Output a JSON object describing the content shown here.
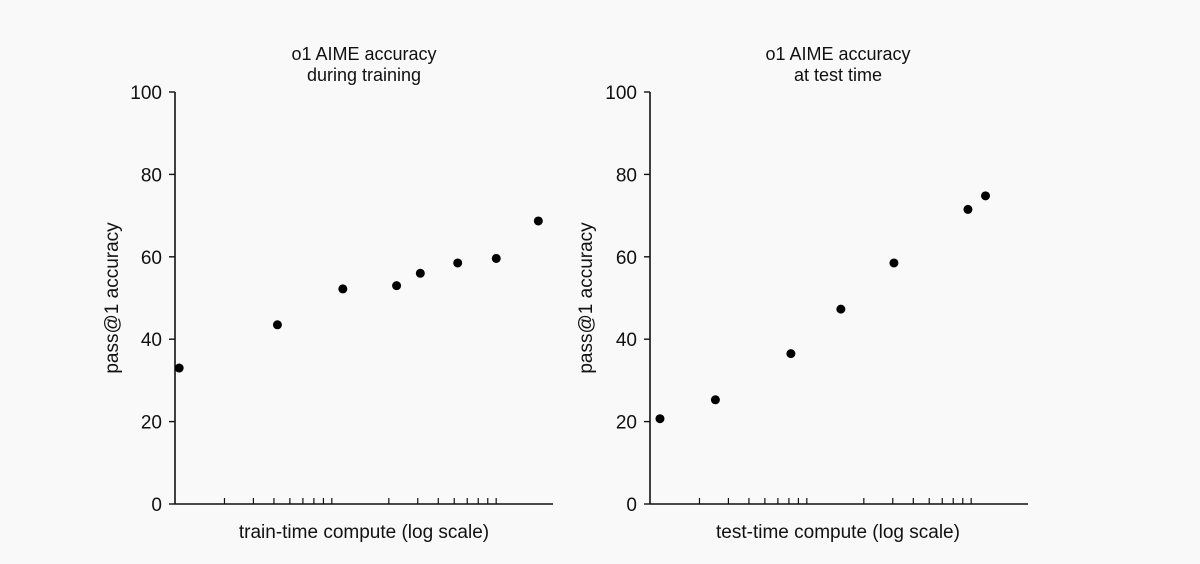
{
  "colors": {
    "background": "#f9f9f9",
    "axis": "#111111",
    "marker": "#000000"
  },
  "chart_data": [
    {
      "type": "scatter",
      "title_lines": [
        "o1 AIME accuracy",
        "during training"
      ],
      "xlabel": "train-time compute (log scale)",
      "ylabel": "pass@1 accuracy",
      "x_scale": "log",
      "x_tick_labels": "none",
      "ylim": [
        0,
        100
      ],
      "yticks": [
        0,
        20,
        40,
        60,
        80,
        100
      ],
      "grid": false,
      "x": [
        1.06,
        4.2,
        10.5,
        22.3,
        31.1,
        52.5,
        90.1,
        162.5
      ],
      "values": [
        33,
        43.5,
        52.2,
        53,
        56,
        58.5,
        59.6,
        68.7
      ]
    },
    {
      "type": "scatter",
      "title_lines": [
        "o1 AIME accuracy",
        "at test time"
      ],
      "xlabel": "test-time compute (log scale)",
      "ylabel": "pass@1 accuracy",
      "x_scale": "log",
      "x_tick_labels": "none",
      "ylim": [
        0,
        100
      ],
      "yticks": [
        0,
        20,
        40,
        60,
        80,
        100
      ],
      "grid": false,
      "x": [
        1.15,
        2.5,
        7.2,
        14.5,
        30.5,
        86,
        110
      ],
      "values": [
        20.7,
        25.3,
        36.5,
        47.3,
        58.5,
        71.5,
        74.8
      ]
    }
  ]
}
